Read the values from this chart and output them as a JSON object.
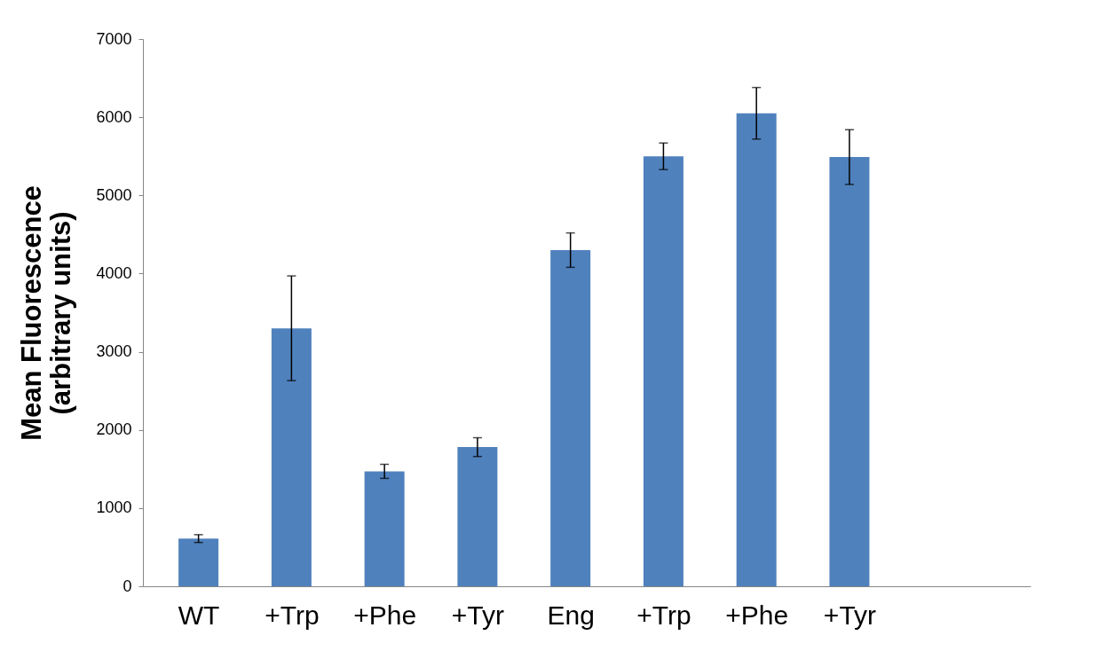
{
  "chart_data": {
    "type": "bar",
    "ylabel": "Mean Fluorescence\n(arbitrary units)",
    "categories": [
      "WT",
      "+Trp",
      "+Phe",
      "+Tyr",
      "Eng",
      "+Trp",
      "+Phe",
      "+Tyr"
    ],
    "series": [
      {
        "color": "#4f81bd",
        "values": [
          610,
          3300,
          1470,
          1780,
          4300,
          5500,
          6050,
          5490
        ],
        "errors": [
          50,
          670,
          90,
          120,
          220,
          170,
          330,
          350
        ]
      }
    ],
    "ylim": [
      0,
      7000
    ],
    "yticks": [
      0,
      1000,
      2000,
      3000,
      4000,
      5000,
      6000,
      7000
    ],
    "grid": false
  }
}
